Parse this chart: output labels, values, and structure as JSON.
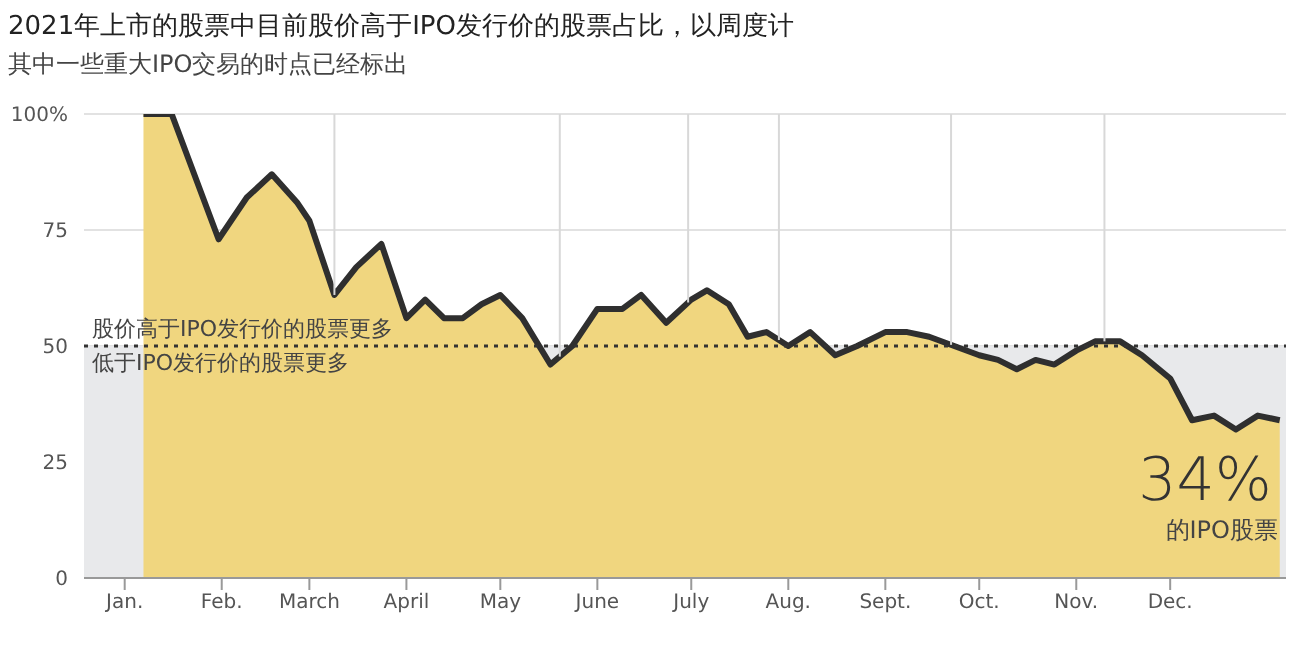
{
  "chart_data": {
    "type": "area",
    "title": "2021年上市的股票中目前股价高于IPO发行价的股票占比，以周度计",
    "subtitle": "其中一些重大IPO交易的时点已经标出",
    "x": [
      "2021-01-07",
      "2021-01-16",
      "2021-01-31",
      "2021-02-09",
      "2021-02-17",
      "2021-02-25",
      "2021-03-01",
      "2021-03-09",
      "2021-03-16",
      "2021-03-24",
      "2021-04-01",
      "2021-04-07",
      "2021-04-13",
      "2021-04-19",
      "2021-04-25",
      "2021-05-01",
      "2021-05-08",
      "2021-05-17",
      "2021-05-24",
      "2021-06-01",
      "2021-06-09",
      "2021-06-15",
      "2021-06-23",
      "2021-07-01",
      "2021-07-06",
      "2021-07-13",
      "2021-07-19",
      "2021-07-25",
      "2021-08-01",
      "2021-08-08",
      "2021-08-16",
      "2021-08-23",
      "2021-09-01",
      "2021-09-08",
      "2021-09-15",
      "2021-09-23",
      "2021-10-01",
      "2021-10-07",
      "2021-10-13",
      "2021-10-19",
      "2021-10-25",
      "2021-11-01",
      "2021-11-07",
      "2021-11-15",
      "2021-11-22",
      "2021-12-01",
      "2021-12-08",
      "2021-12-15",
      "2021-12-22",
      "2021-12-29",
      "2022-01-05"
    ],
    "series": [
      {
        "color": "#f0d67f",
        "values": [
          100,
          100,
          73,
          82,
          87,
          81,
          77,
          61,
          67,
          72,
          56,
          60,
          56,
          56,
          59,
          61,
          56,
          46,
          50,
          58,
          58,
          61,
          55,
          60,
          62,
          59,
          52,
          53,
          50,
          53,
          48,
          50,
          53,
          53,
          52,
          50,
          48,
          47,
          45,
          47,
          46,
          49,
          51,
          51,
          48,
          43,
          34,
          35,
          32,
          35,
          34
        ]
      }
    ],
    "xlim": [
      "2020-12-19",
      "2022-01-07"
    ],
    "xticks": [
      {
        "value": "2021-01-01",
        "label": "Jan."
      },
      {
        "value": "2021-02-01",
        "label": "Feb."
      },
      {
        "value": "2021-03-01",
        "label": "March"
      },
      {
        "value": "2021-04-01",
        "label": "April"
      },
      {
        "value": "2021-05-01",
        "label": "May"
      },
      {
        "value": "2021-06-01",
        "label": "June"
      },
      {
        "value": "2021-07-01",
        "label": "July"
      },
      {
        "value": "2021-08-01",
        "label": "Aug."
      },
      {
        "value": "2021-09-01",
        "label": "Sept."
      },
      {
        "value": "2021-10-01",
        "label": "Oct."
      },
      {
        "value": "2021-11-01",
        "label": "Nov."
      },
      {
        "value": "2021-12-01",
        "label": "Dec."
      }
    ],
    "ylim": [
      0,
      100
    ],
    "yticks": [
      0,
      25,
      50,
      75,
      {
        "value": 100,
        "label": "100%"
      }
    ],
    "grid": "y",
    "bands": [
      {
        "axis": "y",
        "from": 0,
        "to": 50,
        "color": "#e8e9eb"
      }
    ],
    "ref_lines": [
      {
        "axis": "y",
        "value": 50,
        "color": "#333333",
        "line_style": "dotted"
      },
      {
        "axis": "x",
        "value": "2021-03-09",
        "color": "#d8d8d8"
      },
      {
        "axis": "x",
        "value": "2021-05-20",
        "color": "#d8d8d8"
      },
      {
        "axis": "x",
        "value": "2021-06-30",
        "color": "#d8d8d8"
      },
      {
        "axis": "x",
        "value": "2021-07-29",
        "color": "#d8d8d8"
      },
      {
        "axis": "x",
        "value": "2021-09-22",
        "color": "#d8d8d8"
      },
      {
        "axis": "x",
        "value": "2021-11-10",
        "color": "#d8d8d8"
      }
    ],
    "annotations": [
      "股价高于IPO发行价的股票更多",
      "低于IPO发行价的股票更多",
      {
        "text": "34%",
        "x": "2022-01-05",
        "y": 34
      },
      "的IPO股票"
    ]
  }
}
